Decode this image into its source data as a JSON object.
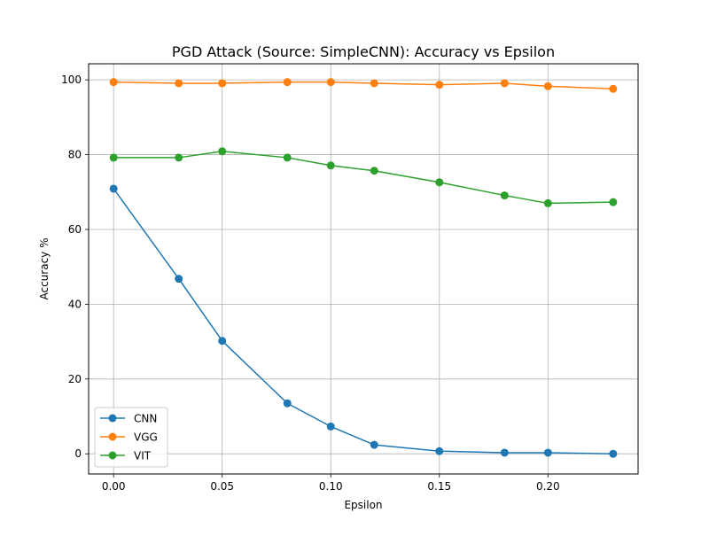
{
  "chart_data": {
    "type": "line",
    "title": "PGD Attack (Source: SimpleCNN): Accuracy vs Epsilon",
    "xlabel": "Epsilon",
    "ylabel": "Accuracy %",
    "xlim": [
      -0.0115,
      0.2415
    ],
    "ylim": [
      -5.4,
      104.3
    ],
    "xticks": [
      "0.00",
      "0.05",
      "0.10",
      "0.15",
      "0.20"
    ],
    "xtick_values": [
      0.0,
      0.05,
      0.1,
      0.15,
      0.2
    ],
    "yticks": [
      "0",
      "20",
      "40",
      "60",
      "80",
      "100"
    ],
    "ytick_values": [
      0,
      20,
      40,
      60,
      80,
      100
    ],
    "grid": true,
    "legend_position": "lower-left",
    "x": [
      0.0,
      0.03,
      0.05,
      0.08,
      0.1,
      0.12,
      0.15,
      0.18,
      0.2,
      0.23
    ],
    "series": [
      {
        "name": "CNN",
        "color": "#1f77b4",
        "values": [
          70.9,
          46.8,
          30.2,
          13.5,
          7.3,
          2.4,
          0.7,
          0.3,
          0.3,
          0.0
        ]
      },
      {
        "name": "VGG",
        "color": "#ff7f0e",
        "values": [
          99.4,
          99.1,
          99.1,
          99.4,
          99.4,
          99.1,
          98.7,
          99.1,
          98.3,
          97.6
        ]
      },
      {
        "name": "VIT",
        "color": "#2ca02c",
        "values": [
          79.2,
          79.2,
          80.9,
          79.2,
          77.1,
          75.7,
          72.6,
          69.1,
          67.0,
          67.3
        ]
      }
    ]
  }
}
